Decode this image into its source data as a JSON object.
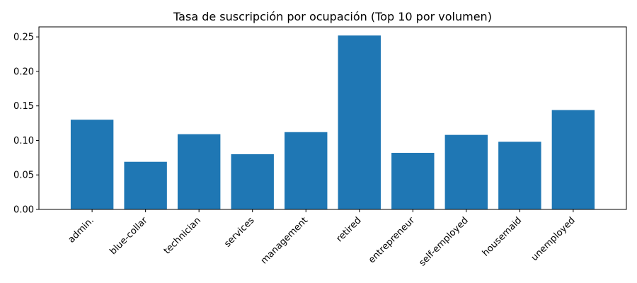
{
  "chart_data": {
    "type": "bar",
    "title": "Tasa de suscripción por ocupación (Top 10 por volumen)",
    "xlabel": "",
    "ylabel": "",
    "categories": [
      "admin.",
      "blue-collar",
      "technician",
      "services",
      "management",
      "retired",
      "entrepreneur",
      "self-employed",
      "housemaid",
      "unemployed"
    ],
    "values": [
      0.13,
      0.069,
      0.109,
      0.08,
      0.112,
      0.252,
      0.082,
      0.108,
      0.098,
      0.144
    ],
    "ylim": [
      0,
      0.2645
    ],
    "yticks": [
      "0.00",
      "0.05",
      "0.10",
      "0.15",
      "0.20",
      "0.25"
    ],
    "bar_color": "#1f77b4",
    "grid": false
  }
}
